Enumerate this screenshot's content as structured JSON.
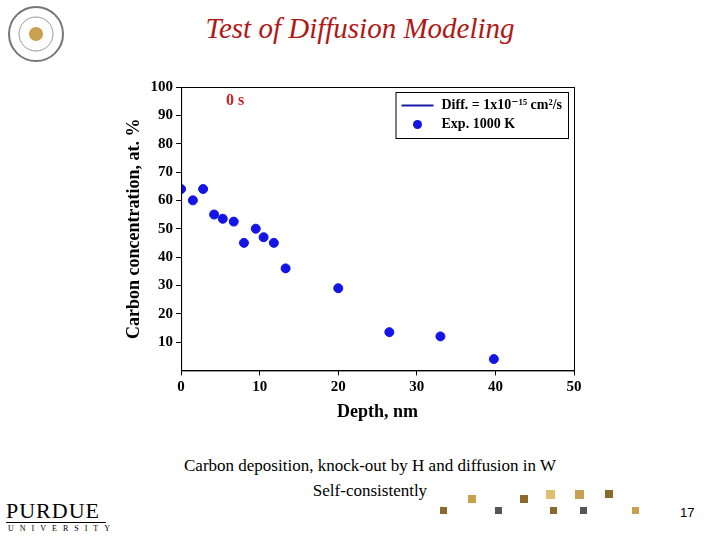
{
  "page": {
    "title": "Test of Diffusion Modeling",
    "caption": [
      "Carbon deposition, knock-out  by H and diffusion in W",
      "Self-consistently"
    ],
    "page_number": "17",
    "logo": [
      "PURDUE",
      "UNIVERSITY"
    ]
  },
  "chart_data": {
    "type": "scatter",
    "annotations": [
      "0 s"
    ],
    "x_label": "Depth, nm",
    "y_label": "Carbon concentration, at. %",
    "x": [
      0,
      1.5,
      2.8,
      4.2,
      5.3,
      6.7,
      8,
      9.5,
      10.5,
      11.8,
      13.3,
      20,
      26.5,
      33,
      39.8
    ],
    "series": [
      {
        "name": "Diff. = 1x10⁻¹⁵ cm²/s",
        "type": "line",
        "color": "#1c1ca8",
        "marker": "none",
        "line_style": "solid",
        "values": [
          null,
          null,
          null,
          null,
          null,
          null,
          null,
          null,
          null,
          null,
          null,
          null,
          null,
          null,
          null
        ]
      },
      {
        "name": "Exp. 1000 K",
        "type": "scatter",
        "color": "#1414e6",
        "marker": "circle",
        "values": [
          64,
          60,
          64,
          55,
          53.5,
          52.5,
          45,
          50,
          47,
          45,
          36,
          29,
          13.5,
          12,
          4
        ]
      }
    ],
    "xlim": [
      0,
      50
    ],
    "xticks": [
      0,
      10,
      20,
      30,
      40,
      50
    ],
    "ylim": [
      0,
      100
    ],
    "yticks": [
      10,
      20,
      30,
      40,
      50,
      60,
      70,
      80,
      90,
      100
    ],
    "grid": false,
    "legend": "top-right"
  }
}
